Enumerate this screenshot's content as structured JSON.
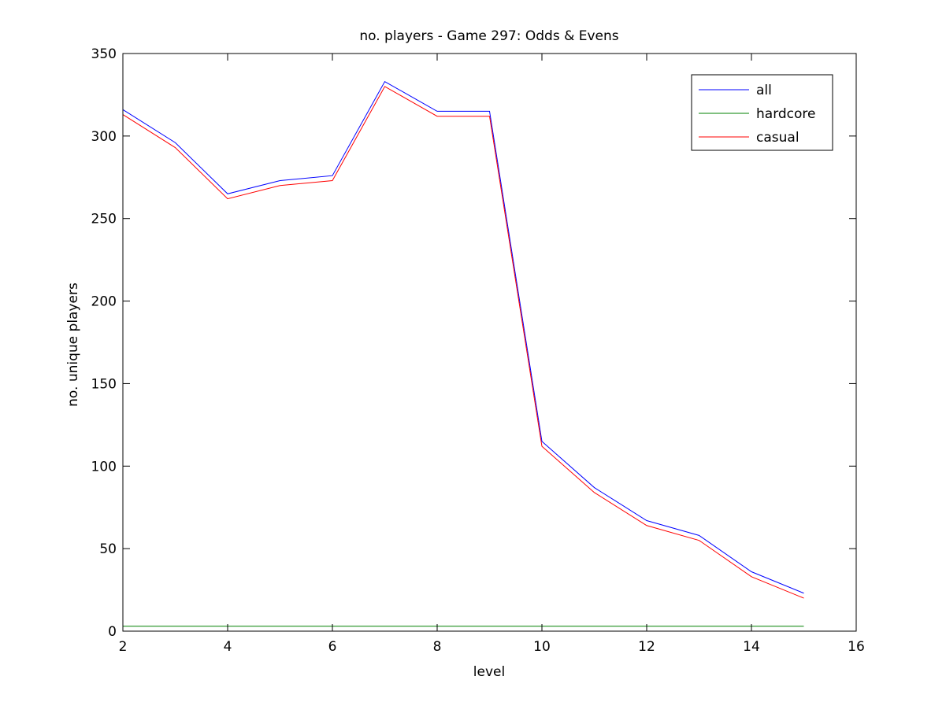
{
  "chart_data": {
    "type": "line",
    "title": "no. players - Game 297: Odds & Evens",
    "xlabel": "level",
    "ylabel": "no. unique players",
    "xlim": [
      2,
      16
    ],
    "ylim": [
      0,
      350
    ],
    "xticks": [
      2,
      4,
      6,
      8,
      10,
      12,
      14,
      16
    ],
    "yticks": [
      0,
      50,
      100,
      150,
      200,
      250,
      300,
      350
    ],
    "grid": false,
    "legend_position": "top-right",
    "x": [
      2,
      3,
      4,
      5,
      6,
      7,
      8,
      9,
      10,
      11,
      12,
      13,
      14,
      15
    ],
    "series": [
      {
        "name": "all",
        "color": "#0000ff",
        "values": [
          316,
          296,
          265,
          273,
          276,
          333,
          315,
          315,
          115,
          87,
          67,
          58,
          36,
          23
        ]
      },
      {
        "name": "hardcore",
        "color": "#008000",
        "values": [
          3,
          3,
          3,
          3,
          3,
          3,
          3,
          3,
          3,
          3,
          3,
          3,
          3,
          3
        ]
      },
      {
        "name": "casual",
        "color": "#ff0000",
        "values": [
          313,
          293,
          262,
          270,
          273,
          330,
          312,
          312,
          112,
          84,
          64,
          55,
          33,
          20
        ]
      }
    ]
  }
}
